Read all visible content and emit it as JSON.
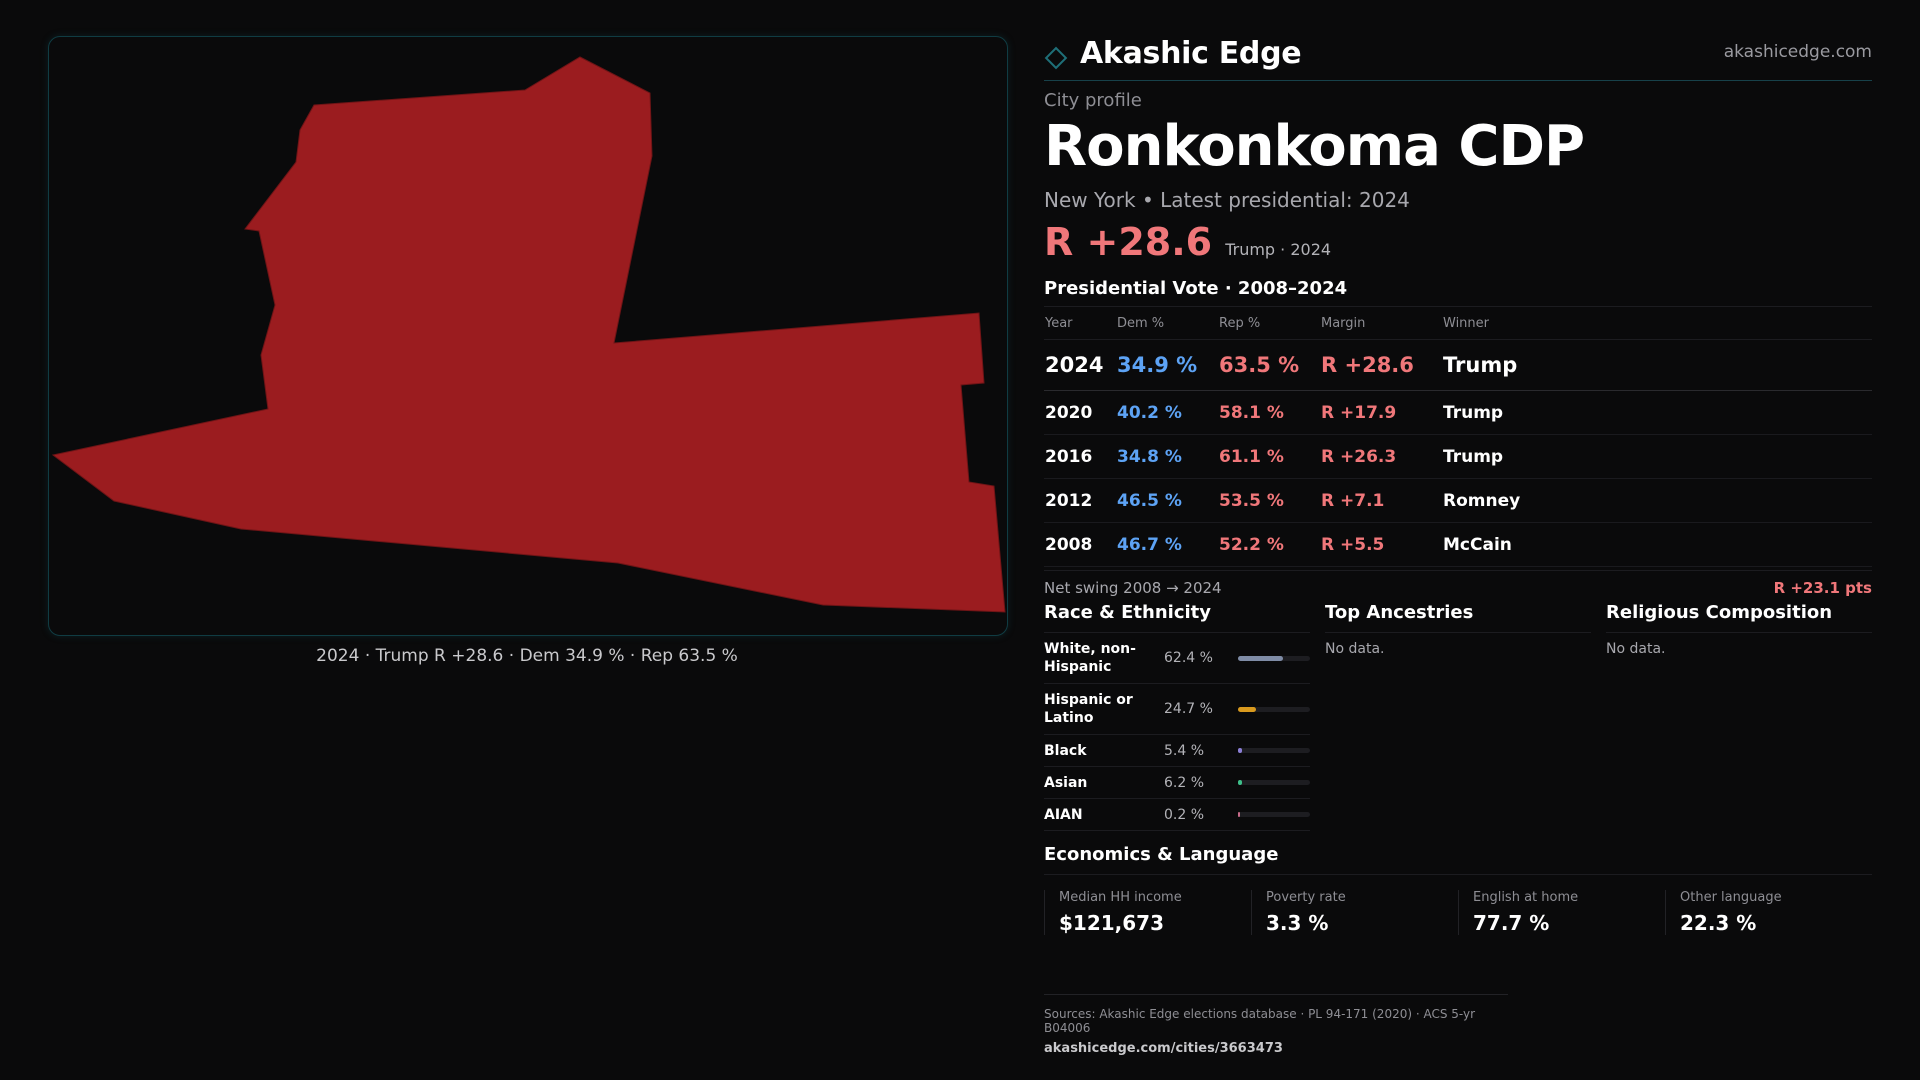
{
  "map": {
    "caption": "2024 · Trump R +28.6 · Dem 34.9 % · Rep 63.5 %",
    "fill_color": "#9b1c1f",
    "frame_color": "#103c43"
  },
  "brand": {
    "name": "Akashic Edge",
    "url": "akashicedge.com",
    "icon": "diamond-outline-icon",
    "accent": "#1e6f78"
  },
  "profile": {
    "kicker": "City profile",
    "city": "Ronkonkoma CDP",
    "subline": "New York  • Latest presidential: 2024",
    "headline_margin": "R +28.6",
    "headline_note": "Trump · 2024"
  },
  "votes": {
    "title": "Presidential Vote · 2008–2024",
    "headers": {
      "year": "Year",
      "dem": "Dem %",
      "rep": "Rep %",
      "margin": "Margin",
      "winner": "Winner"
    },
    "rows": [
      {
        "year": "2024",
        "dem": "34.9 %",
        "rep": "63.5 %",
        "margin": "R +28.6",
        "winner": "Trump"
      },
      {
        "year": "2020",
        "dem": "40.2 %",
        "rep": "58.1 %",
        "margin": "R +17.9",
        "winner": "Trump"
      },
      {
        "year": "2016",
        "dem": "34.8 %",
        "rep": "61.1 %",
        "margin": "R +26.3",
        "winner": "Trump"
      },
      {
        "year": "2012",
        "dem": "46.5 %",
        "rep": "53.5 %",
        "margin": "R +7.1",
        "winner": "Romney"
      },
      {
        "year": "2008",
        "dem": "46.7 %",
        "rep": "52.2 %",
        "margin": "R +5.5",
        "winner": "McCain"
      }
    ],
    "swing_label": "Net swing 2008 → 2024",
    "swing_value": "R +23.1 pts",
    "dem_color": "#5da3f5",
    "rep_color": "#f0777a"
  },
  "race": {
    "title": "Race & Ethnicity",
    "rows": [
      {
        "name": "White, non-Hispanic",
        "pct": "62.4 %",
        "share": 0.624,
        "color": "#7f8ca6"
      },
      {
        "name": "Hispanic or Latino",
        "pct": "24.7 %",
        "share": 0.247,
        "color": "#d99a1e"
      },
      {
        "name": "Black",
        "pct": "5.4 %",
        "share": 0.054,
        "color": "#8b7fd6"
      },
      {
        "name": "Asian",
        "pct": "6.2 %",
        "share": 0.062,
        "color": "#3ebf8a"
      },
      {
        "name": "AIAN",
        "pct": "0.2 %",
        "share": 0.002,
        "color": "#c86c8a"
      }
    ]
  },
  "ancestries": {
    "title": "Top Ancestries",
    "empty": "No data."
  },
  "religion": {
    "title": "Religious Composition",
    "empty": "No data."
  },
  "economics": {
    "title": "Economics & Language",
    "stats": [
      {
        "label": "Median HH income",
        "value": "$121,673"
      },
      {
        "label": "Poverty rate",
        "value": "3.3 %"
      },
      {
        "label": "English at home",
        "value": "77.7 %"
      },
      {
        "label": "Other language",
        "value": "22.3 %"
      }
    ]
  },
  "sources": {
    "text": "Sources: Akashic Edge elections database · PL 94-171 (2020) · ACS 5-yr B04006",
    "url": "akashicedge.com/cities/3663473"
  }
}
